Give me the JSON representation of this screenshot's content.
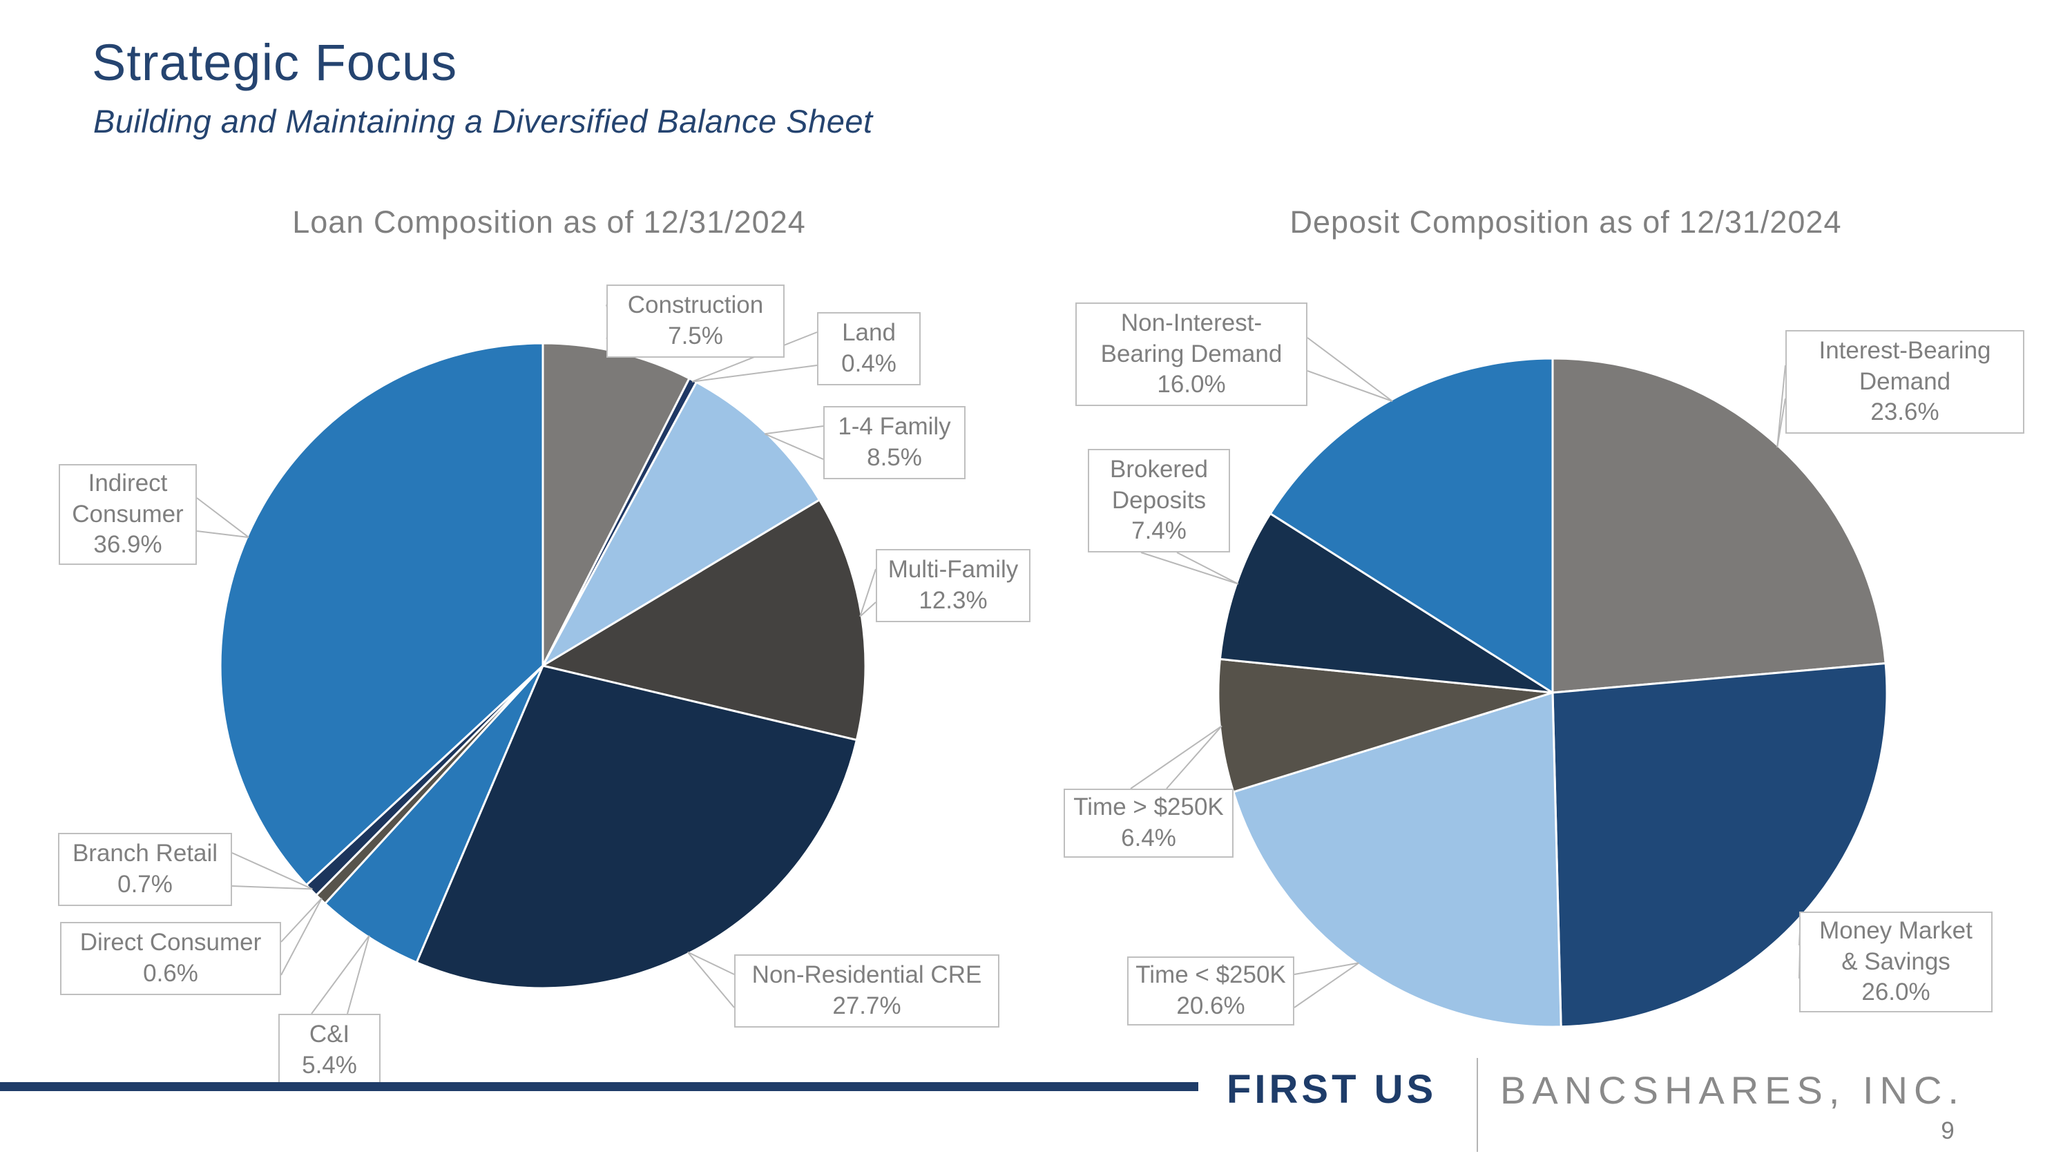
{
  "slide": {
    "title": "Strategic Focus",
    "subtitle": "Building and Maintaining a Diversified Balance Sheet",
    "page_number": "9",
    "footer": {
      "brand_primary": "FIRST US",
      "brand_secondary": "BANCSHARES, INC."
    }
  },
  "colors": {
    "title_navy": "#254470",
    "chart_title_gray": "#808080",
    "callout_text_gray": "#7f7f7f",
    "callout_border_gray": "#bfbfbf",
    "leader_line_gray": "#b8b8b8",
    "footer_bar_navy": "#1f3c68",
    "brand_navy": "#1e3c69",
    "brand_gray": "#8a8a8a",
    "slice_stroke_white": "#ffffff"
  },
  "chart_data": [
    {
      "type": "pie",
      "id": "loan",
      "title": "Loan Composition as of 12/31/2024",
      "start_angle_deg": 0,
      "direction": "clockwise",
      "legend_position": "callout-labels",
      "slices": [
        {
          "label": "Construction",
          "value": 7.5,
          "pct": "7.5%",
          "color": "#7c7a78",
          "lines": [
            "Construction"
          ]
        },
        {
          "label": "Land",
          "value": 0.4,
          "pct": "0.4%",
          "color": "#1f3864",
          "lines": [
            "Land"
          ]
        },
        {
          "label": "1-4 Family",
          "value": 8.5,
          "pct": "8.5%",
          "color": "#9dc3e6",
          "lines": [
            "1-4 Family"
          ]
        },
        {
          "label": "Multi-Family",
          "value": 12.3,
          "pct": "12.3%",
          "color": "#444240",
          "lines": [
            "Multi-Family"
          ]
        },
        {
          "label": "Non-Residential CRE",
          "value": 27.7,
          "pct": "27.7%",
          "color": "#152e4d",
          "lines": [
            "Non-Residential CRE"
          ]
        },
        {
          "label": "C&I",
          "value": 5.4,
          "pct": "5.4%",
          "color": "#2878b8",
          "lines": [
            "C&I"
          ]
        },
        {
          "label": "Direct Consumer",
          "value": 0.6,
          "pct": "0.6%",
          "color": "#57534b",
          "lines": [
            "Direct Consumer"
          ]
        },
        {
          "label": "Branch Retail",
          "value": 0.7,
          "pct": "0.7%",
          "color": "#1c355c",
          "lines": [
            "Branch Retail"
          ]
        },
        {
          "label": "Indirect Consumer",
          "value": 36.9,
          "pct": "36.9%",
          "color": "#2878b8",
          "lines": [
            "Indirect",
            "Consumer"
          ]
        }
      ]
    },
    {
      "type": "pie",
      "id": "deposit",
      "title": "Deposit Composition as of 12/31/2024",
      "start_angle_deg": 0,
      "direction": "clockwise",
      "legend_position": "callout-labels",
      "slices": [
        {
          "label": "Interest-Bearing Demand",
          "value": 23.6,
          "pct": "23.6%",
          "color": "#7c7a78",
          "lines": [
            "Interest-Bearing",
            "Demand"
          ]
        },
        {
          "label": "Money Market & Savings",
          "value": 26.0,
          "pct": "26.0%",
          "color": "#1f4878",
          "lines": [
            "Money Market",
            "& Savings"
          ]
        },
        {
          "label": "Time < $250K",
          "value": 20.6,
          "pct": "20.6%",
          "color": "#9dc3e6",
          "lines": [
            "Time < $250K"
          ]
        },
        {
          "label": "Time > $250K",
          "value": 6.4,
          "pct": "6.4%",
          "color": "#56524a",
          "lines": [
            "Time > $250K"
          ]
        },
        {
          "label": "Brokered Deposits",
          "value": 7.4,
          "pct": "7.4%",
          "color": "#16304e",
          "lines": [
            "Brokered",
            "Deposits"
          ]
        },
        {
          "label": "Non-Interest-Bearing Demand",
          "value": 16.0,
          "pct": "16.0%",
          "color": "#2878b8",
          "lines": [
            "Non-Interest-",
            "Bearing Demand"
          ]
        }
      ]
    }
  ]
}
